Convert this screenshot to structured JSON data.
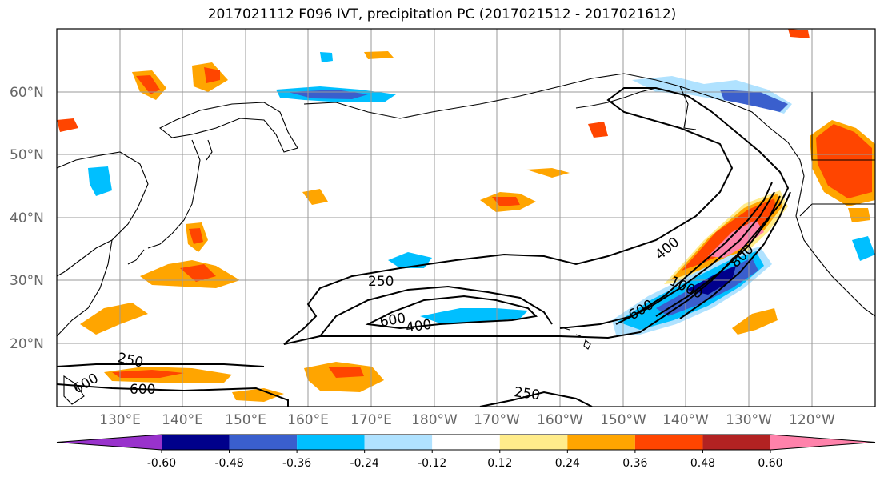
{
  "title": "2017021112 F096 IVT, precipitation PC (2017021512 - 2017021612)",
  "map": {
    "lat_labels": [
      "60°N",
      "50°N",
      "40°N",
      "30°N",
      "20°N"
    ],
    "lon_labels": [
      "130°E",
      "140°E",
      "150°E",
      "160°E",
      "170°E",
      "180°W",
      "170°W",
      "160°W",
      "150°W",
      "140°W",
      "130°W",
      "120°W"
    ],
    "contour_labels": [
      "250",
      "250",
      "250",
      "400",
      "400",
      "600",
      "600",
      "800",
      "600",
      "1000",
      "600"
    ],
    "gridlines": true
  },
  "colorbar": {
    "colors": [
      "#9932cc",
      "#00008b",
      "#3a5fcd",
      "#00bfff",
      "#b0e2ff",
      "#ffffff",
      "#ffec8b",
      "#ffa500",
      "#ff4500",
      "#b22222",
      "#ff82ab"
    ],
    "tick_labels": [
      "-0.60",
      "-0.48",
      "-0.36",
      "-0.24",
      "-0.12",
      "0.12",
      "0.24",
      "0.36",
      "0.48",
      "0.60"
    ],
    "extend": "both"
  }
}
